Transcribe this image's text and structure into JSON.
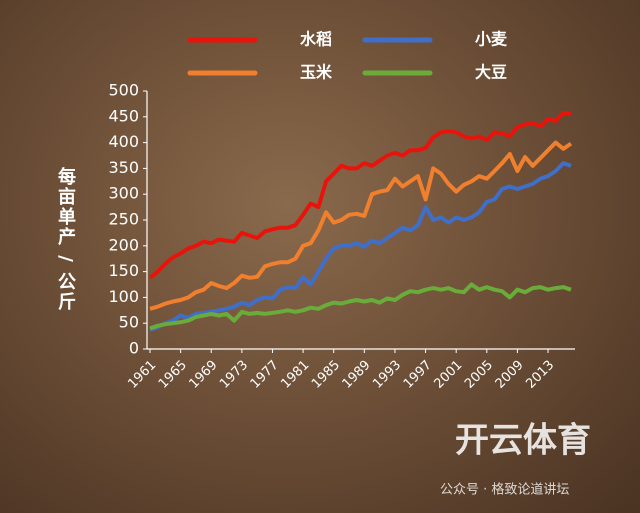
{
  "chart_data": {
    "type": "line",
    "y_label": "每亩单产 / 公斤",
    "x": [
      1961,
      1962,
      1963,
      1964,
      1965,
      1966,
      1967,
      1968,
      1969,
      1970,
      1971,
      1972,
      1973,
      1974,
      1975,
      1976,
      1977,
      1978,
      1979,
      1980,
      1981,
      1982,
      1983,
      1984,
      1985,
      1986,
      1987,
      1988,
      1989,
      1990,
      1991,
      1992,
      1993,
      1994,
      1995,
      1996,
      1997,
      1998,
      1999,
      2000,
      2001,
      2002,
      2003,
      2004,
      2005,
      2006,
      2007,
      2008,
      2009,
      2010,
      2011,
      2012,
      2013,
      2014,
      2015,
      2016
    ],
    "xlim": [
      1961,
      2016
    ],
    "xticks": [
      1961,
      1965,
      1969,
      1973,
      1977,
      1981,
      1985,
      1989,
      1993,
      1997,
      2001,
      2005,
      2009,
      2013
    ],
    "ylim": [
      0,
      500
    ],
    "yticks": [
      0,
      50,
      100,
      150,
      200,
      250,
      300,
      350,
      400,
      450,
      500
    ],
    "grid": false,
    "series": [
      {
        "name": "水稻",
        "color": "#e8140c",
        "values": [
          138,
          150,
          165,
          178,
          185,
          195,
          200,
          208,
          205,
          212,
          210,
          208,
          225,
          220,
          215,
          228,
          232,
          235,
          235,
          240,
          260,
          282,
          275,
          325,
          340,
          355,
          350,
          350,
          360,
          355,
          365,
          375,
          380,
          375,
          385,
          385,
          390,
          410,
          420,
          422,
          420,
          412,
          408,
          412,
          405,
          420,
          418,
          412,
          430,
          435,
          438,
          432,
          445,
          442,
          458,
          455
        ]
      },
      {
        "name": "小麦",
        "color": "#3f6fc8",
        "values": [
          37,
          42,
          50,
          55,
          65,
          60,
          68,
          70,
          72,
          75,
          78,
          82,
          90,
          85,
          95,
          100,
          98,
          115,
          120,
          118,
          140,
          125,
          150,
          175,
          195,
          200,
          200,
          205,
          198,
          210,
          205,
          215,
          225,
          235,
          230,
          240,
          275,
          250,
          255,
          245,
          255,
          250,
          255,
          265,
          285,
          290,
          310,
          315,
          310,
          315,
          320,
          330,
          335,
          345,
          360,
          355
        ]
      },
      {
        "name": "玉米",
        "color": "#f07f2e",
        "values": [
          78,
          82,
          88,
          92,
          95,
          100,
          110,
          115,
          128,
          122,
          118,
          128,
          142,
          138,
          140,
          160,
          165,
          168,
          168,
          175,
          200,
          205,
          230,
          265,
          245,
          250,
          260,
          262,
          258,
          300,
          305,
          308,
          330,
          315,
          325,
          335,
          290,
          350,
          340,
          320,
          305,
          318,
          325,
          335,
          330,
          345,
          360,
          378,
          345,
          372,
          355,
          370,
          385,
          400,
          388,
          398
        ]
      },
      {
        "name": "大豆",
        "color": "#6aac3a",
        "values": [
          40,
          45,
          48,
          50,
          52,
          55,
          62,
          65,
          68,
          65,
          68,
          55,
          72,
          68,
          70,
          68,
          70,
          72,
          75,
          72,
          75,
          80,
          78,
          85,
          90,
          88,
          92,
          95,
          92,
          95,
          90,
          98,
          95,
          105,
          112,
          110,
          115,
          118,
          115,
          118,
          112,
          110,
          125,
          115,
          120,
          115,
          112,
          100,
          115,
          110,
          118,
          120,
          115,
          118,
          120,
          115
        ]
      }
    ]
  },
  "watermark": {
    "brand": "开云体育",
    "source": "公众号 · 格致论道讲坛"
  }
}
